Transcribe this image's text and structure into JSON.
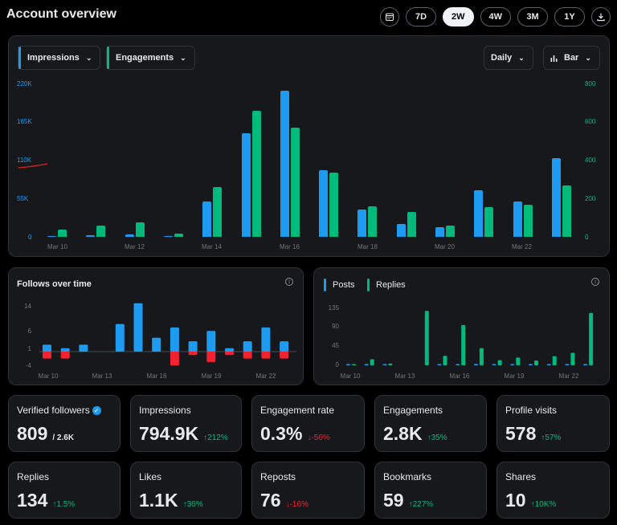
{
  "header": {
    "title": "Account overview"
  },
  "toolbar": {
    "ranges": [
      "7D",
      "2W",
      "4W",
      "3M",
      "1Y"
    ],
    "active_range": "2W"
  },
  "main_chart": {
    "metric1": "Impressions",
    "metric2": "Engagements",
    "interval": "Daily",
    "chart_type": "Bar",
    "left_ticks": [
      "220K",
      "165K",
      "110K",
      "55K",
      "0"
    ],
    "right_ticks": [
      "800",
      "600",
      "400",
      "200",
      "0"
    ],
    "x_labels": [
      "Mar 10",
      "Mar 12",
      "Mar 14",
      "Mar 16",
      "Mar 18",
      "Mar 20",
      "Mar 22"
    ]
  },
  "follows_chart": {
    "title": "Follows over time",
    "y_ticks": [
      "14",
      "6",
      "1",
      "-4"
    ],
    "x_labels": [
      "Mar 10",
      "Mar 13",
      "Mar 16",
      "Mar 19",
      "Mar 22"
    ]
  },
  "posts_chart": {
    "legend1": "Posts",
    "legend2": "Replies",
    "y_ticks": [
      "135",
      "90",
      "45",
      "0"
    ],
    "x_labels": [
      "Mar 10",
      "Mar 13",
      "Mar 16",
      "Mar 19",
      "Mar 22"
    ]
  },
  "stats": [
    {
      "label": "Verified followers",
      "value": "809",
      "sub": "/ 2.6K",
      "change": "",
      "dir": ""
    },
    {
      "label": "Impressions",
      "value": "794.9K",
      "change": "212%",
      "dir": "up"
    },
    {
      "label": "Engagement rate",
      "value": "0.3%",
      "change": "-56%",
      "dir": "down"
    },
    {
      "label": "Engagements",
      "value": "2.8K",
      "change": "35%",
      "dir": "up"
    },
    {
      "label": "Profile visits",
      "value": "578",
      "change": "57%",
      "dir": "up"
    },
    {
      "label": "Replies",
      "value": "134",
      "change": "1.5%",
      "dir": "up"
    },
    {
      "label": "Likes",
      "value": "1.1K",
      "change": "36%",
      "dir": "up"
    },
    {
      "label": "Reposts",
      "value": "76",
      "change": "-16%",
      "dir": "down"
    },
    {
      "label": "Bookmarks",
      "value": "59",
      "change": "227%",
      "dir": "up"
    },
    {
      "label": "Shares",
      "value": "10",
      "change": "10K%",
      "dir": "up"
    }
  ],
  "chart_data": [
    {
      "type": "bar",
      "categories": [
        "Mar 10",
        "Mar 11",
        "Mar 12",
        "Mar 13",
        "Mar 14",
        "Mar 15",
        "Mar 16",
        "Mar 17",
        "Mar 18",
        "Mar 19",
        "Mar 20",
        "Mar 21",
        "Mar 22",
        "Mar 23"
      ],
      "series": [
        {
          "name": "Impressions",
          "axis": "left",
          "color": "#1d9bf0",
          "values": [
            1500,
            2000,
            3500,
            1500,
            50000,
            148000,
            208000,
            95000,
            39000,
            18000,
            14000,
            67000,
            50000,
            112000
          ]
        },
        {
          "name": "Engagements",
          "axis": "right",
          "color": "#00ba7c",
          "values": [
            38,
            57,
            75,
            16,
            260,
            655,
            565,
            335,
            157,
            130,
            59,
            155,
            167,
            265
          ]
        }
      ],
      "ylim_left": [
        0,
        220000
      ],
      "ylim_right": [
        0,
        800
      ]
    },
    {
      "type": "bar",
      "title": "Follows over time",
      "categories": [
        "Mar 10",
        "Mar 11",
        "Mar 12",
        "Mar 13",
        "Mar 14",
        "Mar 15",
        "Mar 16",
        "Mar 17",
        "Mar 18",
        "Mar 19",
        "Mar 20",
        "Mar 21",
        "Mar 22",
        "Mar 23"
      ],
      "series": [
        {
          "name": "Follows",
          "color": "#1d9bf0",
          "values": [
            2,
            1,
            2,
            0,
            8,
            14,
            4,
            7,
            3,
            6,
            1,
            3,
            7,
            3
          ]
        },
        {
          "name": "Unfollows",
          "color": "#f4212e",
          "values": [
            -2,
            -2,
            0,
            0,
            0,
            0,
            0,
            -4,
            -1,
            -3,
            -1,
            -2,
            -2,
            -2
          ]
        }
      ],
      "ylim": [
        -4,
        14
      ]
    },
    {
      "type": "bar",
      "categories": [
        "Mar 10",
        "Mar 11",
        "Mar 12",
        "Mar 13",
        "Mar 14",
        "Mar 15",
        "Mar 16",
        "Mar 17",
        "Mar 18",
        "Mar 19",
        "Mar 20",
        "Mar 21",
        "Mar 22",
        "Mar 23"
      ],
      "series": [
        {
          "name": "Posts",
          "color": "#1d9bf0",
          "values": [
            1,
            1,
            1,
            0,
            0,
            2,
            2,
            3,
            2,
            2,
            2,
            2,
            2,
            2
          ]
        },
        {
          "name": "Replies",
          "color": "#00ba7c",
          "values": [
            2,
            14,
            4,
            0,
            127,
            22,
            94,
            40,
            12,
            18,
            11,
            21,
            29,
            122
          ]
        }
      ],
      "ylim": [
        0,
        135
      ]
    }
  ]
}
